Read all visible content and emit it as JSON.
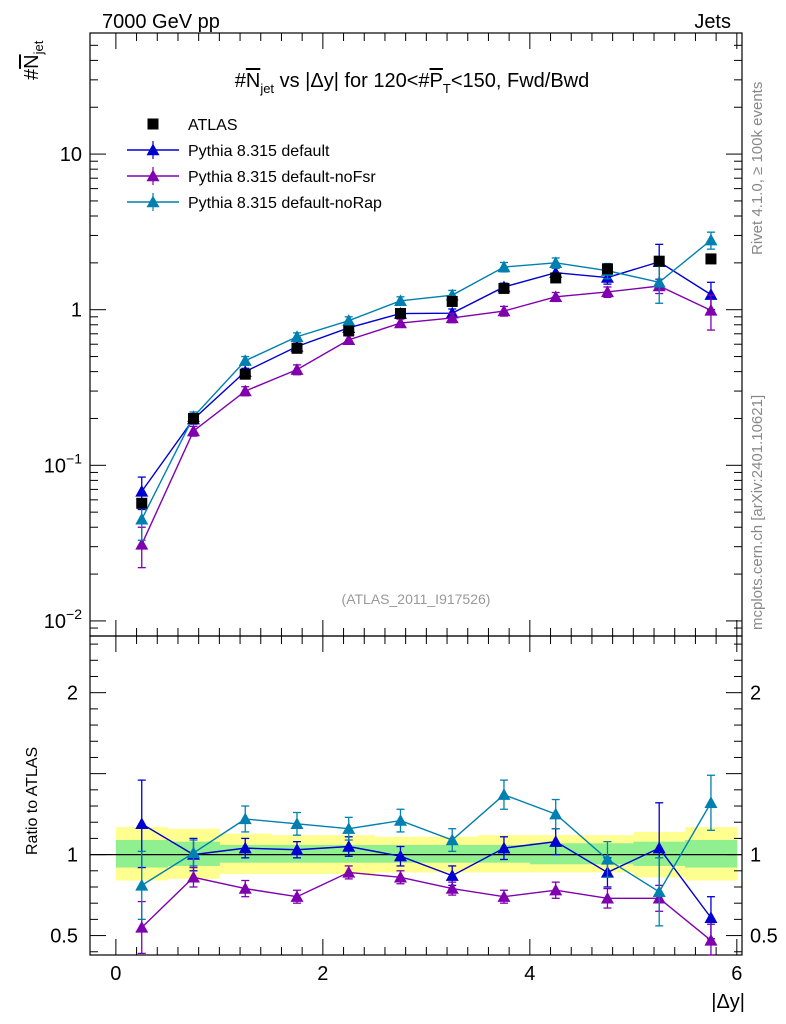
{
  "header": {
    "left": "7000 GeV pp",
    "right": "Jets"
  },
  "side": {
    "rivet": "Rivet 4.1.0, ≥ 100k events",
    "mcplots": "mcplots.cern.ch [arXiv:2401.10621]"
  },
  "colors": {
    "atlas": "#000000",
    "default": "#0000d0",
    "noFsr": "#8000b0",
    "noRap": "#0080b0",
    "band_yellow": "#ffff90",
    "band_green": "#90f090"
  },
  "chart_data": [
    {
      "panel": "main",
      "type": "scatter",
      "title": "#N_jet vs |Δy| for 120<#P_T<150, Fwd/Bwd",
      "title_parts": {
        "pre": "#",
        "n": "N",
        "nsub": "jet",
        "mid": " vs |Δy| for 120<#",
        "p": "P",
        "psub": "T",
        "post": "<150, Fwd/Bwd"
      },
      "ylabel": "#N_jet",
      "ylabel_parts": {
        "pre": "#",
        "n": "N",
        "sub": "jet"
      },
      "yscale": "log",
      "xlim": [
        -0.25,
        6.05
      ],
      "ylim": [
        0.008,
        60
      ],
      "y_ticks": [
        {
          "v": 0.01,
          "base": "10",
          "exp": "−2"
        },
        {
          "v": 0.1,
          "base": "10",
          "exp": "−1"
        },
        {
          "v": 1,
          "label": "1"
        },
        {
          "v": 10,
          "label": "10"
        }
      ],
      "reference": "(ATLAS_2011_I917526)",
      "x": [
        0.25,
        0.75,
        1.25,
        1.75,
        2.25,
        2.75,
        3.25,
        3.75,
        4.25,
        4.75,
        5.25,
        5.75
      ],
      "series": [
        {
          "name": "ATLAS",
          "key": "atlas",
          "marker": "square",
          "values": [
            0.057,
            0.2,
            0.385,
            0.565,
            0.73,
            0.945,
            1.13,
            1.37,
            1.6,
            1.83,
            2.05,
            2.12
          ]
        },
        {
          "name": "Pythia 8.315 default",
          "key": "default",
          "marker": "triangle",
          "values": [
            0.068,
            0.198,
            0.4,
            0.58,
            0.765,
            0.945,
            0.95,
            1.4,
            1.73,
            1.61,
            2.03,
            1.25
          ],
          "err": [
            0.016,
            0.014,
            0.02,
            0.03,
            0.04,
            0.06,
            0.06,
            0.08,
            0.12,
            0.15,
            0.6,
            0.25
          ]
        },
        {
          "name": "Pythia 8.315 default-noFsr",
          "key": "noFsr",
          "marker": "triangle",
          "values": [
            0.031,
            0.166,
            0.3,
            0.412,
            0.64,
            0.82,
            0.885,
            0.98,
            1.21,
            1.3,
            1.42,
            0.99
          ],
          "err": [
            0.009,
            0.012,
            0.02,
            0.03,
            0.04,
            0.05,
            0.06,
            0.07,
            0.08,
            0.1,
            0.15,
            0.25
          ]
        },
        {
          "name": "Pythia 8.315 default-noRap",
          "key": "noRap",
          "marker": "triangle",
          "values": [
            0.045,
            0.205,
            0.47,
            0.67,
            0.85,
            1.14,
            1.24,
            1.88,
            2.0,
            1.78,
            1.5,
            2.8
          ],
          "err": [
            0.012,
            0.015,
            0.03,
            0.04,
            0.05,
            0.07,
            0.09,
            0.13,
            0.15,
            0.2,
            0.4,
            0.35
          ]
        }
      ],
      "legend": "top-left"
    },
    {
      "panel": "ratio",
      "type": "scatter",
      "ylabel": "Ratio to ATLAS",
      "xlabel": "|Δy|",
      "ylim": [
        0.38,
        2.35
      ],
      "xlim": [
        -0.25,
        6.05
      ],
      "x_ticks": [
        0,
        2,
        4,
        6
      ],
      "y_ticks": [
        0.5,
        1,
        2
      ],
      "x": [
        0.25,
        0.75,
        1.25,
        1.75,
        2.25,
        2.75,
        3.25,
        3.75,
        4.25,
        4.75,
        5.25,
        5.75
      ],
      "bands": {
        "yellow": [
          [
            0.84,
            1.17
          ],
          [
            0.85,
            1.16
          ],
          [
            0.88,
            1.13
          ],
          [
            0.88,
            1.12
          ],
          [
            0.88,
            1.12
          ],
          [
            0.89,
            1.11
          ],
          [
            0.89,
            1.11
          ],
          [
            0.89,
            1.12
          ],
          [
            0.89,
            1.12
          ],
          [
            0.89,
            1.12
          ],
          [
            0.86,
            1.14
          ],
          [
            0.84,
            1.17
          ]
        ],
        "green": [
          [
            0.92,
            1.09
          ],
          [
            0.93,
            1.08
          ],
          [
            0.95,
            1.06
          ],
          [
            0.95,
            1.06
          ],
          [
            0.95,
            1.06
          ],
          [
            0.95,
            1.06
          ],
          [
            0.95,
            1.06
          ],
          [
            0.95,
            1.06
          ],
          [
            0.94,
            1.07
          ],
          [
            0.94,
            1.07
          ],
          [
            0.93,
            1.08
          ],
          [
            0.92,
            1.09
          ]
        ]
      },
      "series": [
        {
          "name": "Pythia 8.315 default",
          "key": "default",
          "values": [
            1.19,
            1.0,
            1.04,
            1.03,
            1.05,
            0.99,
            0.87,
            1.04,
            1.08,
            0.89,
            1.04,
            0.61
          ],
          "err": [
            0.27,
            0.1,
            0.06,
            0.05,
            0.06,
            0.06,
            0.06,
            0.07,
            0.08,
            0.09,
            0.28,
            0.13
          ]
        },
        {
          "name": "Pythia 8.315 default-noFsr",
          "key": "noFsr",
          "values": [
            0.55,
            0.86,
            0.79,
            0.74,
            0.89,
            0.86,
            0.79,
            0.74,
            0.78,
            0.73,
            0.73,
            0.47
          ],
          "err": [
            0.16,
            0.06,
            0.05,
            0.04,
            0.04,
            0.04,
            0.04,
            0.04,
            0.05,
            0.06,
            0.08,
            0.1
          ]
        },
        {
          "name": "Pythia 8.315 default-noRap",
          "key": "noRap",
          "values": [
            0.81,
            1.01,
            1.22,
            1.19,
            1.16,
            1.21,
            1.09,
            1.37,
            1.25,
            0.97,
            0.77,
            1.32
          ],
          "err": [
            0.21,
            0.08,
            0.08,
            0.07,
            0.07,
            0.07,
            0.07,
            0.09,
            0.09,
            0.11,
            0.21,
            0.17
          ]
        }
      ]
    }
  ]
}
